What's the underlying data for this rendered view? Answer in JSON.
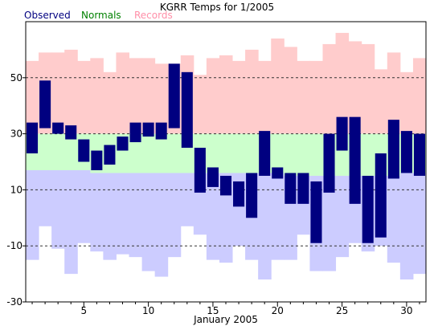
{
  "chart_data": {
    "type": "bar",
    "title": "KGRR Temps for 1/2005",
    "xlabel": "January 2005",
    "ylabel": "",
    "ylim": [
      -30,
      70
    ],
    "xlim": [
      0.5,
      31.5
    ],
    "y_ticks": [
      50,
      30,
      10,
      -10,
      -30
    ],
    "x_ticks": [
      5,
      10,
      15,
      20,
      25,
      30
    ],
    "grid": "dashed horizontal",
    "legend": {
      "placement": "top-left",
      "entries": [
        {
          "label": "Observed",
          "color": "#000080"
        },
        {
          "label": "Normals",
          "color": "#008000"
        },
        {
          "label": "Records",
          "color": "#ff8fa8"
        }
      ]
    },
    "colors": {
      "observed": "#000080",
      "normals": "#ccffcc",
      "records_high": "#ffcccc",
      "records_low": "#ccccff",
      "grid": "#333333"
    },
    "days": [
      1,
      2,
      3,
      4,
      5,
      6,
      7,
      8,
      9,
      10,
      11,
      12,
      13,
      14,
      15,
      16,
      17,
      18,
      19,
      20,
      21,
      22,
      23,
      24,
      25,
      26,
      27,
      28,
      29,
      30,
      31
    ],
    "series": [
      {
        "name": "Observed",
        "high": [
          34,
          49,
          34,
          33,
          28,
          24,
          26,
          29,
          34,
          34,
          34,
          55,
          52,
          25,
          18,
          15,
          13,
          16,
          31,
          18,
          16,
          16,
          13,
          30,
          36,
          36,
          15,
          23,
          35,
          31,
          30
        ],
        "low": [
          23,
          32,
          30,
          28,
          20,
          17,
          19,
          24,
          27,
          29,
          28,
          32,
          25,
          9,
          11,
          8,
          4,
          0,
          15,
          14,
          5,
          5,
          -9,
          9,
          24,
          5,
          -9,
          -7,
          14,
          16,
          15
        ]
      },
      {
        "name": "Normals",
        "high": [
          30,
          30,
          30,
          30,
          30,
          30,
          30,
          30,
          30,
          30,
          30,
          30,
          30,
          30,
          30,
          30,
          30,
          30,
          30,
          30,
          30,
          30,
          30,
          30,
          30,
          30,
          30,
          30,
          30,
          30,
          30
        ],
        "low": [
          17,
          17,
          17,
          17,
          17,
          16,
          16,
          16,
          16,
          16,
          16,
          16,
          16,
          16,
          16,
          16,
          16,
          16,
          16,
          16,
          15,
          15,
          15,
          15,
          15,
          15,
          15,
          15,
          15,
          16,
          16
        ]
      },
      {
        "name": "Records",
        "high": [
          56,
          59,
          59,
          60,
          56,
          57,
          52,
          59,
          57,
          57,
          55,
          55,
          58,
          51,
          57,
          58,
          56,
          60,
          56,
          64,
          61,
          56,
          56,
          62,
          66,
          63,
          62,
          53,
          59,
          52,
          57
        ],
        "low": [
          -15,
          -3,
          -11,
          -20,
          -9,
          -12,
          -15,
          -13,
          -14,
          -19,
          -21,
          -14,
          -3,
          -6,
          -15,
          -16,
          -10,
          -15,
          -22,
          -15,
          -15,
          -6,
          -19,
          -19,
          -14,
          -9,
          -12,
          -10,
          -16,
          -22,
          -20
        ]
      }
    ]
  }
}
